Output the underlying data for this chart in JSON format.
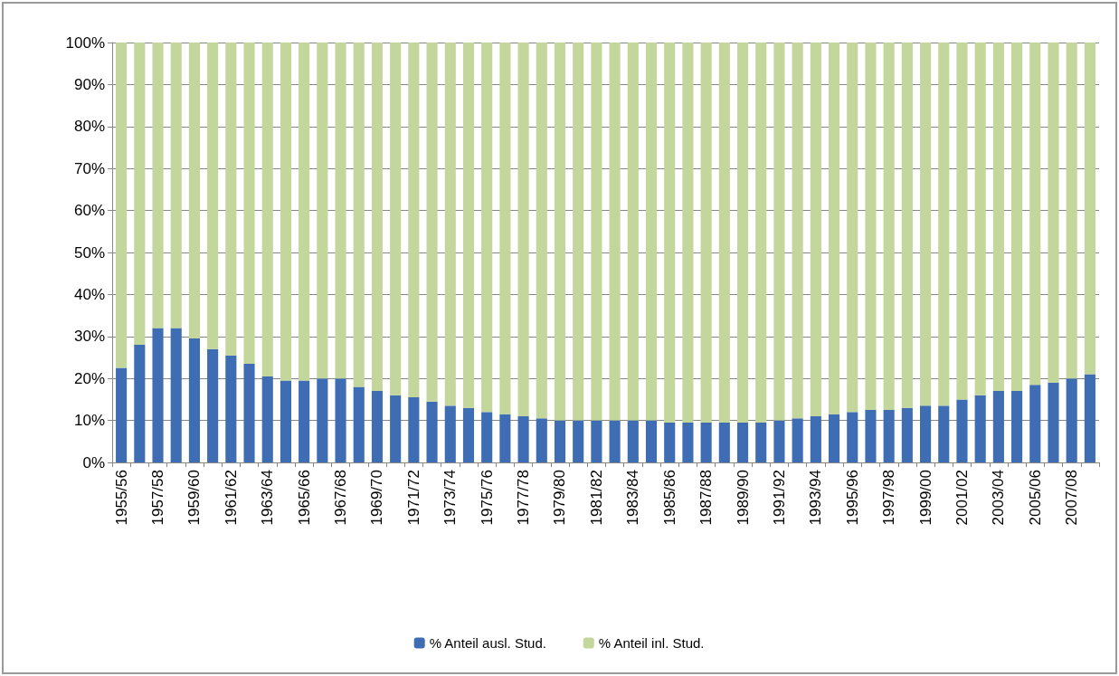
{
  "chart_data": {
    "type": "bar",
    "stacked": true,
    "categories": [
      "1955/56",
      null,
      "1957/58",
      null,
      "1959/60",
      null,
      "1961/62",
      null,
      "1963/64",
      null,
      "1965/66",
      null,
      "1967/68",
      null,
      "1969/70",
      null,
      "1971/72",
      null,
      "1973/74",
      null,
      "1975/76",
      null,
      "1977/78",
      null,
      "1979/80",
      null,
      "1981/82",
      null,
      "1983/84",
      null,
      "1985/86",
      null,
      "1987/88",
      null,
      "1989/90",
      null,
      "1991/92",
      null,
      "1993/94",
      null,
      "1995/96",
      null,
      "1997/98",
      null,
      "1999/00",
      null,
      "2001/02",
      null,
      "2003/04",
      null,
      "2005/06",
      null,
      "2007/08",
      null
    ],
    "series": [
      {
        "name": "% Anteil ausl. Stud.",
        "color": "#3e6db3",
        "values": [
          22.5,
          28,
          32,
          32,
          29.5,
          27,
          25.5,
          23.5,
          20.5,
          19.5,
          19.5,
          20,
          20,
          18,
          17,
          16,
          15.5,
          14.5,
          13.5,
          13,
          12,
          11.5,
          11,
          10.5,
          10,
          10,
          10,
          10,
          10,
          10,
          9.5,
          9.5,
          9.5,
          9.5,
          9.5,
          9.5,
          10,
          10.5,
          11,
          11.5,
          12,
          12.5,
          12.5,
          13,
          13.5,
          13.5,
          15,
          16,
          17,
          17,
          18.5,
          19,
          20,
          21
        ]
      },
      {
        "name": "% Anteil inl. Stud.",
        "color": "#c3d69b",
        "values": [
          77.5,
          72,
          68,
          68,
          70.5,
          73,
          74.5,
          76.5,
          79.5,
          80.5,
          80.5,
          80,
          80,
          82,
          83,
          84,
          84.5,
          85.5,
          86.5,
          87,
          88,
          88.5,
          89,
          89.5,
          90,
          90,
          90,
          90,
          90,
          90,
          90.5,
          90.5,
          90.5,
          90.5,
          90.5,
          90.5,
          90,
          89.5,
          89,
          88.5,
          88,
          87.5,
          87.5,
          87,
          86.5,
          86.5,
          85,
          84,
          83,
          83,
          81.5,
          81,
          80,
          79
        ]
      }
    ],
    "ylim": [
      0,
      100
    ],
    "yticks": [
      {
        "value": 0,
        "label": "0%"
      },
      {
        "value": 10,
        "label": "10%"
      },
      {
        "value": 20,
        "label": "20%"
      },
      {
        "value": 30,
        "label": "30%"
      },
      {
        "value": 40,
        "label": "40%"
      },
      {
        "value": 50,
        "label": "50%"
      },
      {
        "value": 60,
        "label": "60%"
      },
      {
        "value": 70,
        "label": "70%"
      },
      {
        "value": 80,
        "label": "80%"
      },
      {
        "value": 90,
        "label": "90%"
      },
      {
        "value": 100,
        "label": "100%"
      }
    ],
    "grid": "y",
    "legend": "bottom"
  }
}
